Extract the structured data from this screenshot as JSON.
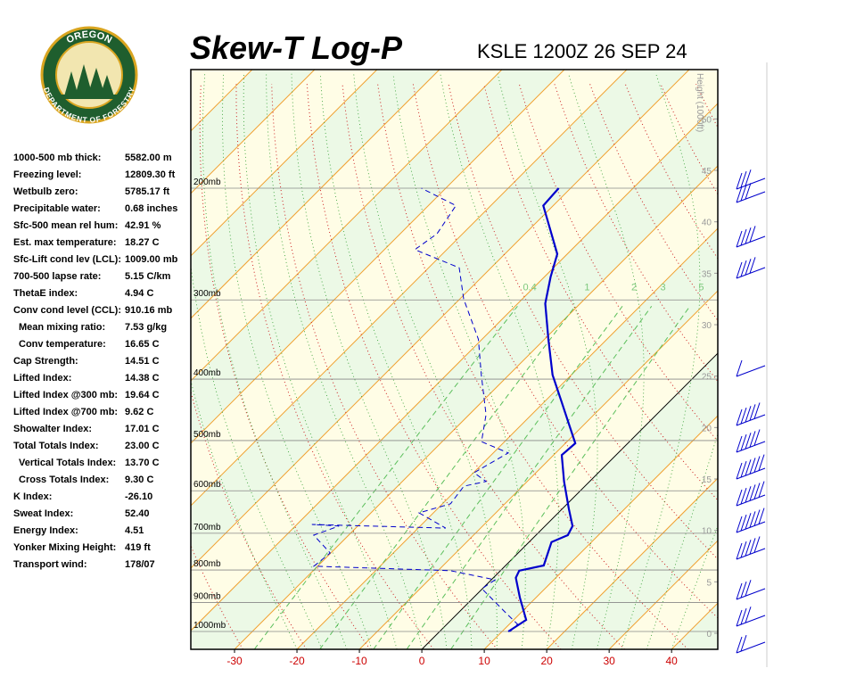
{
  "logo": {
    "top": "OREGON",
    "bottom": "DEPARTMENT OF FORESTRY"
  },
  "header": {
    "title": "Skew-T Log-P",
    "station": "KSLE 1200Z 26 SEP 24"
  },
  "indices": {
    "rows": [
      [
        "1000-500 mb thick:",
        "5582.00 m"
      ],
      [
        "Freezing level:",
        "12809.30 ft"
      ],
      [
        "Wetbulb zero:",
        "5785.17 ft"
      ],
      [
        "Precipitable water:",
        "0.68 inches"
      ],
      [
        "Sfc-500 mean rel hum:",
        "42.91 %"
      ],
      [
        "Est. max temperature:",
        "18.27 C"
      ],
      [
        "Sfc-Lift cond lev (LCL):",
        "1009.00 mb"
      ],
      [
        "700-500 lapse rate:",
        "5.15 C/km"
      ],
      [
        "ThetaE index:",
        "4.94 C"
      ],
      [
        "Conv cond level (CCL):",
        "910.16 mb"
      ],
      [
        "Mean mixing ratio:",
        "7.53 g/kg"
      ],
      [
        "Conv temperature:",
        "16.65 C"
      ],
      [
        "Cap Strength:",
        "14.51 C"
      ],
      [
        "Lifted Index:",
        "14.38 C"
      ],
      [
        "Lifted Index @300 mb:",
        "19.64 C"
      ],
      [
        "Lifted Index @700 mb:",
        "9.62 C"
      ],
      [
        "Showalter Index:",
        "17.01 C"
      ],
      [
        "Total Totals Index:",
        "23.00 C"
      ],
      [
        "Vertical Totals Index:",
        "13.70 C"
      ],
      [
        "Cross Totals Index:",
        "9.30 C"
      ],
      [
        "K Index:",
        "-26.10"
      ],
      [
        "Sweat Index:",
        "52.40"
      ],
      [
        "Energy Index:",
        "4.51"
      ],
      [
        "Yonker Mixing Height:",
        "419 ft"
      ],
      [
        "Transport wind:",
        "178/07"
      ]
    ]
  },
  "chart_data": {
    "type": "skewt",
    "xlim": [
      -37,
      47.4
    ],
    "xticks": [
      -30,
      -20,
      -10,
      0,
      10,
      20,
      30,
      40
    ],
    "ylim": [
      1067,
      130
    ],
    "log_y": true,
    "yticks": [
      {
        "value": 200,
        "label": "200mb"
      },
      {
        "value": 300,
        "label": "300mb"
      },
      {
        "value": 400,
        "label": "400mb"
      },
      {
        "value": 500,
        "label": "500mb"
      },
      {
        "value": 600,
        "label": "600mb"
      },
      {
        "value": 700,
        "label": "700mb"
      },
      {
        "value": 800,
        "label": "800mb"
      },
      {
        "value": 900,
        "label": "900mb"
      },
      {
        "value": 1000,
        "label": "1000mb"
      }
    ],
    "y2label": "Height (1000ft)",
    "y2lim": [
      -1.56,
      54.8
    ],
    "y2ticks": [
      0,
      5,
      10,
      15,
      20,
      25,
      30,
      35,
      40,
      45,
      50
    ],
    "mixing_ratio_lines": [
      0.4,
      1,
      2,
      3,
      5
    ],
    "series": [
      {
        "color": "#0000cc",
        "pressure": [
          1000,
          959,
          884,
          823,
          802,
          787,
          723,
          705,
          682,
          640,
          580,
          527,
          505,
          434,
          394,
          346,
          304,
          276,
          254,
          213,
          200
        ],
        "values": [
          11.0,
          12.0,
          7.4,
          3.6,
          3.0,
          6.1,
          3.6,
          5.1,
          4.4,
          1.0,
          -4.1,
          -8.7,
          -8.4,
          -17.3,
          -23.0,
          -29.4,
          -35.6,
          -39.0,
          -41.6,
          -51.6,
          -51.9
        ]
      },
      {
        "color": "#0000cc",
        "pressure": [
          1000,
          974,
          943,
          856,
          829,
          802,
          789,
          752,
          705,
          682,
          678,
          687,
          650,
          629,
          590,
          580,
          562,
          523,
          502,
          455,
          394,
          346,
          299,
          267,
          250,
          236,
          213,
          200
        ],
        "values": [
          11.3,
          11.3,
          8.4,
          -0.1,
          0.6,
          -8.0,
          -30.6,
          -30.1,
          -35.6,
          -33.0,
          -37.6,
          -15.6,
          -22.3,
          -18.7,
          -19.4,
          -16.6,
          -19.9,
          -17.6,
          -23.7,
          -27.3,
          -34.4,
          -40.6,
          -49.4,
          -55.1,
          -65.1,
          -64.1,
          -65.6,
          -73.9
        ]
      }
    ]
  }
}
